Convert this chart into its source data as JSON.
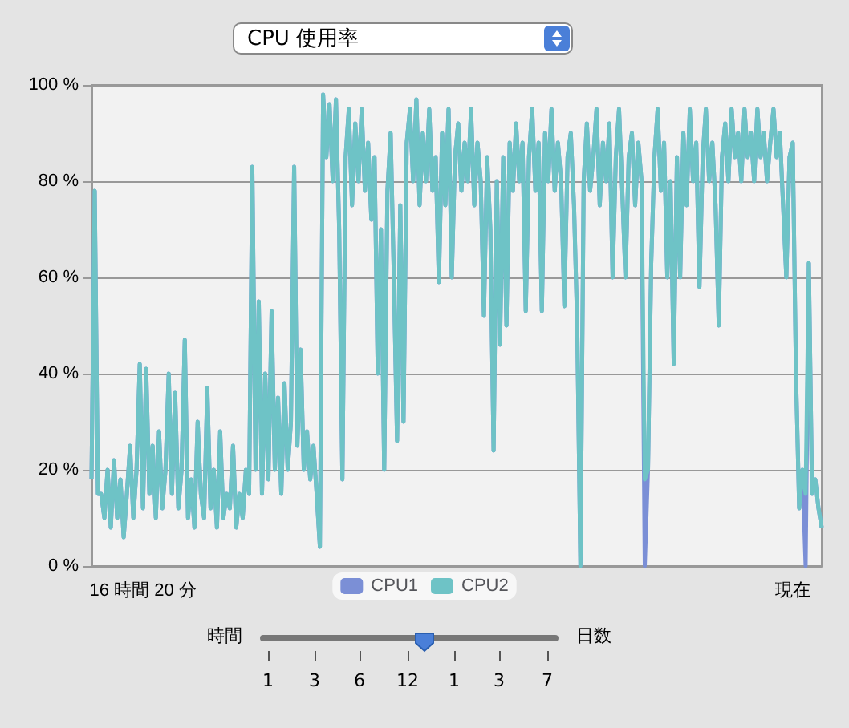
{
  "chart_data": {
    "type": "line",
    "title": "CPU 使用率",
    "categories": [
      null,
      null,
      null,
      null,
      null,
      null,
      null,
      null,
      null,
      null,
      null,
      null,
      null,
      null,
      null,
      null,
      "16 時間 20 分",
      null,
      null,
      null,
      null,
      null,
      null,
      null,
      null,
      null,
      null,
      null,
      null,
      null,
      null,
      null,
      null,
      null,
      null,
      null,
      null,
      null,
      null,
      null,
      null,
      null,
      null,
      null,
      null,
      null,
      null,
      null,
      null,
      null,
      null,
      null,
      null,
      null,
      null,
      null,
      null,
      null,
      null,
      null,
      null,
      null,
      null,
      null,
      null,
      null,
      null,
      null,
      null,
      null,
      null,
      null,
      null,
      null,
      null,
      null,
      null,
      null,
      null,
      null,
      null,
      null,
      null,
      null,
      null,
      null,
      null,
      null,
      null,
      null,
      null,
      null,
      null,
      null,
      null,
      null,
      null,
      null,
      null,
      null,
      null,
      null,
      null,
      null,
      null,
      null,
      null,
      null,
      null,
      null,
      null,
      null,
      null,
      null,
      null,
      null,
      null,
      null,
      null,
      null,
      null,
      null,
      null,
      null,
      null,
      null,
      null,
      null,
      null,
      null,
      null,
      null,
      null,
      null,
      null,
      null,
      null,
      null,
      null,
      null,
      null,
      null,
      null,
      null,
      null,
      null,
      null,
      null,
      null,
      null,
      null,
      null,
      null,
      null,
      null,
      null,
      null,
      null,
      null,
      null,
      null,
      null,
      null,
      null,
      null,
      null,
      null,
      null,
      null,
      null,
      null,
      null,
      null,
      null,
      null,
      null,
      null,
      null,
      null,
      null,
      null,
      null,
      null,
      null,
      null,
      null,
      null,
      null,
      null,
      null,
      null,
      null,
      null,
      null,
      null,
      null,
      null,
      null,
      null,
      null,
      null,
      null,
      null,
      null,
      null,
      null,
      null,
      null,
      null,
      null,
      null,
      null,
      null,
      null,
      null,
      null,
      null,
      null,
      "現在",
      null,
      null,
      null,
      null,
      null,
      null,
      null,
      null,
      null
    ],
    "series": [
      {
        "name": "CPU1",
        "color": "#7b8fd6",
        "values": [
          18,
          78,
          15,
          15,
          10,
          20,
          8,
          22,
          10,
          18,
          6,
          15,
          25,
          10,
          20,
          42,
          12,
          41,
          15,
          25,
          10,
          28,
          12,
          20,
          40,
          15,
          36,
          12,
          20,
          47,
          10,
          18,
          8,
          30,
          15,
          10,
          37,
          12,
          20,
          8,
          28,
          10,
          15,
          12,
          25,
          8,
          15,
          10,
          20,
          15,
          83,
          20,
          55,
          15,
          40,
          18,
          53,
          20,
          35,
          15,
          38,
          20,
          30,
          83,
          25,
          45,
          20,
          28,
          18,
          25,
          15,
          4,
          98,
          85,
          96,
          80,
          97,
          70,
          18,
          85,
          95,
          75,
          92,
          80,
          95,
          78,
          88,
          72,
          85,
          40,
          70,
          20,
          78,
          90,
          60,
          26,
          75,
          30,
          88,
          95,
          80,
          97,
          75,
          90,
          80,
          95,
          78,
          85,
          59,
          90,
          75,
          95,
          60,
          85,
          92,
          78,
          88,
          80,
          95,
          75,
          88,
          80,
          52,
          85,
          70,
          24,
          80,
          46,
          85,
          50,
          88,
          78,
          92,
          80,
          88,
          53,
          85,
          95,
          78,
          88,
          53,
          90,
          80,
          95,
          78,
          88,
          80,
          54,
          85,
          90,
          75,
          50,
          0,
          80,
          92,
          78,
          85,
          95,
          75,
          88,
          80,
          92,
          60,
          85,
          95,
          78,
          60,
          85,
          90,
          75,
          88,
          80,
          0,
          20,
          63,
          85,
          95,
          78,
          88,
          60,
          80,
          42,
          85,
          60,
          90,
          75,
          95,
          80,
          88,
          58,
          85,
          95,
          80,
          88,
          75,
          50,
          85,
          92,
          80,
          95,
          85,
          90,
          80,
          95,
          85,
          90,
          80,
          95,
          85,
          90,
          80,
          88,
          95,
          85,
          90,
          75,
          60,
          85,
          88,
          40,
          12,
          20,
          0,
          63,
          15,
          18,
          12,
          8
        ]
      },
      {
        "name": "CPU2",
        "color": "#6ec3c6",
        "values": [
          18,
          78,
          15,
          15,
          10,
          20,
          8,
          22,
          10,
          18,
          6,
          15,
          25,
          10,
          20,
          42,
          12,
          41,
          15,
          25,
          10,
          28,
          12,
          20,
          40,
          15,
          36,
          12,
          20,
          47,
          10,
          18,
          8,
          30,
          15,
          10,
          37,
          12,
          20,
          8,
          28,
          10,
          15,
          12,
          25,
          8,
          15,
          10,
          20,
          15,
          83,
          20,
          55,
          15,
          40,
          18,
          53,
          20,
          35,
          15,
          38,
          20,
          30,
          83,
          25,
          45,
          20,
          28,
          18,
          25,
          15,
          4,
          98,
          85,
          96,
          80,
          97,
          70,
          18,
          85,
          95,
          75,
          92,
          80,
          95,
          78,
          88,
          72,
          85,
          40,
          70,
          20,
          78,
          90,
          60,
          26,
          75,
          30,
          88,
          95,
          80,
          97,
          75,
          90,
          80,
          95,
          78,
          85,
          59,
          90,
          75,
          95,
          60,
          85,
          92,
          78,
          88,
          80,
          95,
          75,
          88,
          80,
          52,
          85,
          70,
          24,
          80,
          46,
          85,
          50,
          88,
          78,
          92,
          80,
          88,
          53,
          85,
          95,
          78,
          88,
          53,
          90,
          80,
          95,
          78,
          88,
          80,
          54,
          85,
          90,
          75,
          50,
          0,
          80,
          92,
          78,
          85,
          95,
          75,
          88,
          80,
          92,
          60,
          85,
          95,
          78,
          60,
          85,
          90,
          75,
          88,
          80,
          18,
          20,
          63,
          85,
          95,
          78,
          88,
          60,
          80,
          42,
          85,
          60,
          90,
          75,
          95,
          80,
          88,
          58,
          85,
          95,
          80,
          88,
          75,
          50,
          85,
          92,
          80,
          95,
          85,
          90,
          80,
          95,
          85,
          90,
          80,
          95,
          85,
          90,
          80,
          88,
          95,
          85,
          90,
          75,
          60,
          85,
          88,
          40,
          12,
          20,
          15,
          63,
          15,
          18,
          12,
          8
        ]
      }
    ],
    "ylim": [
      0,
      100
    ],
    "yticks": [
      {
        "value": 0,
        "label": "0 %"
      },
      {
        "value": 20,
        "label": "20 %"
      },
      {
        "value": 40,
        "label": "40 %"
      },
      {
        "value": 60,
        "label": "60 %"
      },
      {
        "value": 80,
        "label": "80 %"
      },
      {
        "value": 100,
        "label": "100 %"
      }
    ],
    "grid": "y",
    "legend": "bottom",
    "marker": "none",
    "line_style": "solid",
    "annotations": [
      "時間",
      "日数",
      "1",
      "3",
      "6",
      "12",
      "1",
      "3",
      "7"
    ]
  }
}
